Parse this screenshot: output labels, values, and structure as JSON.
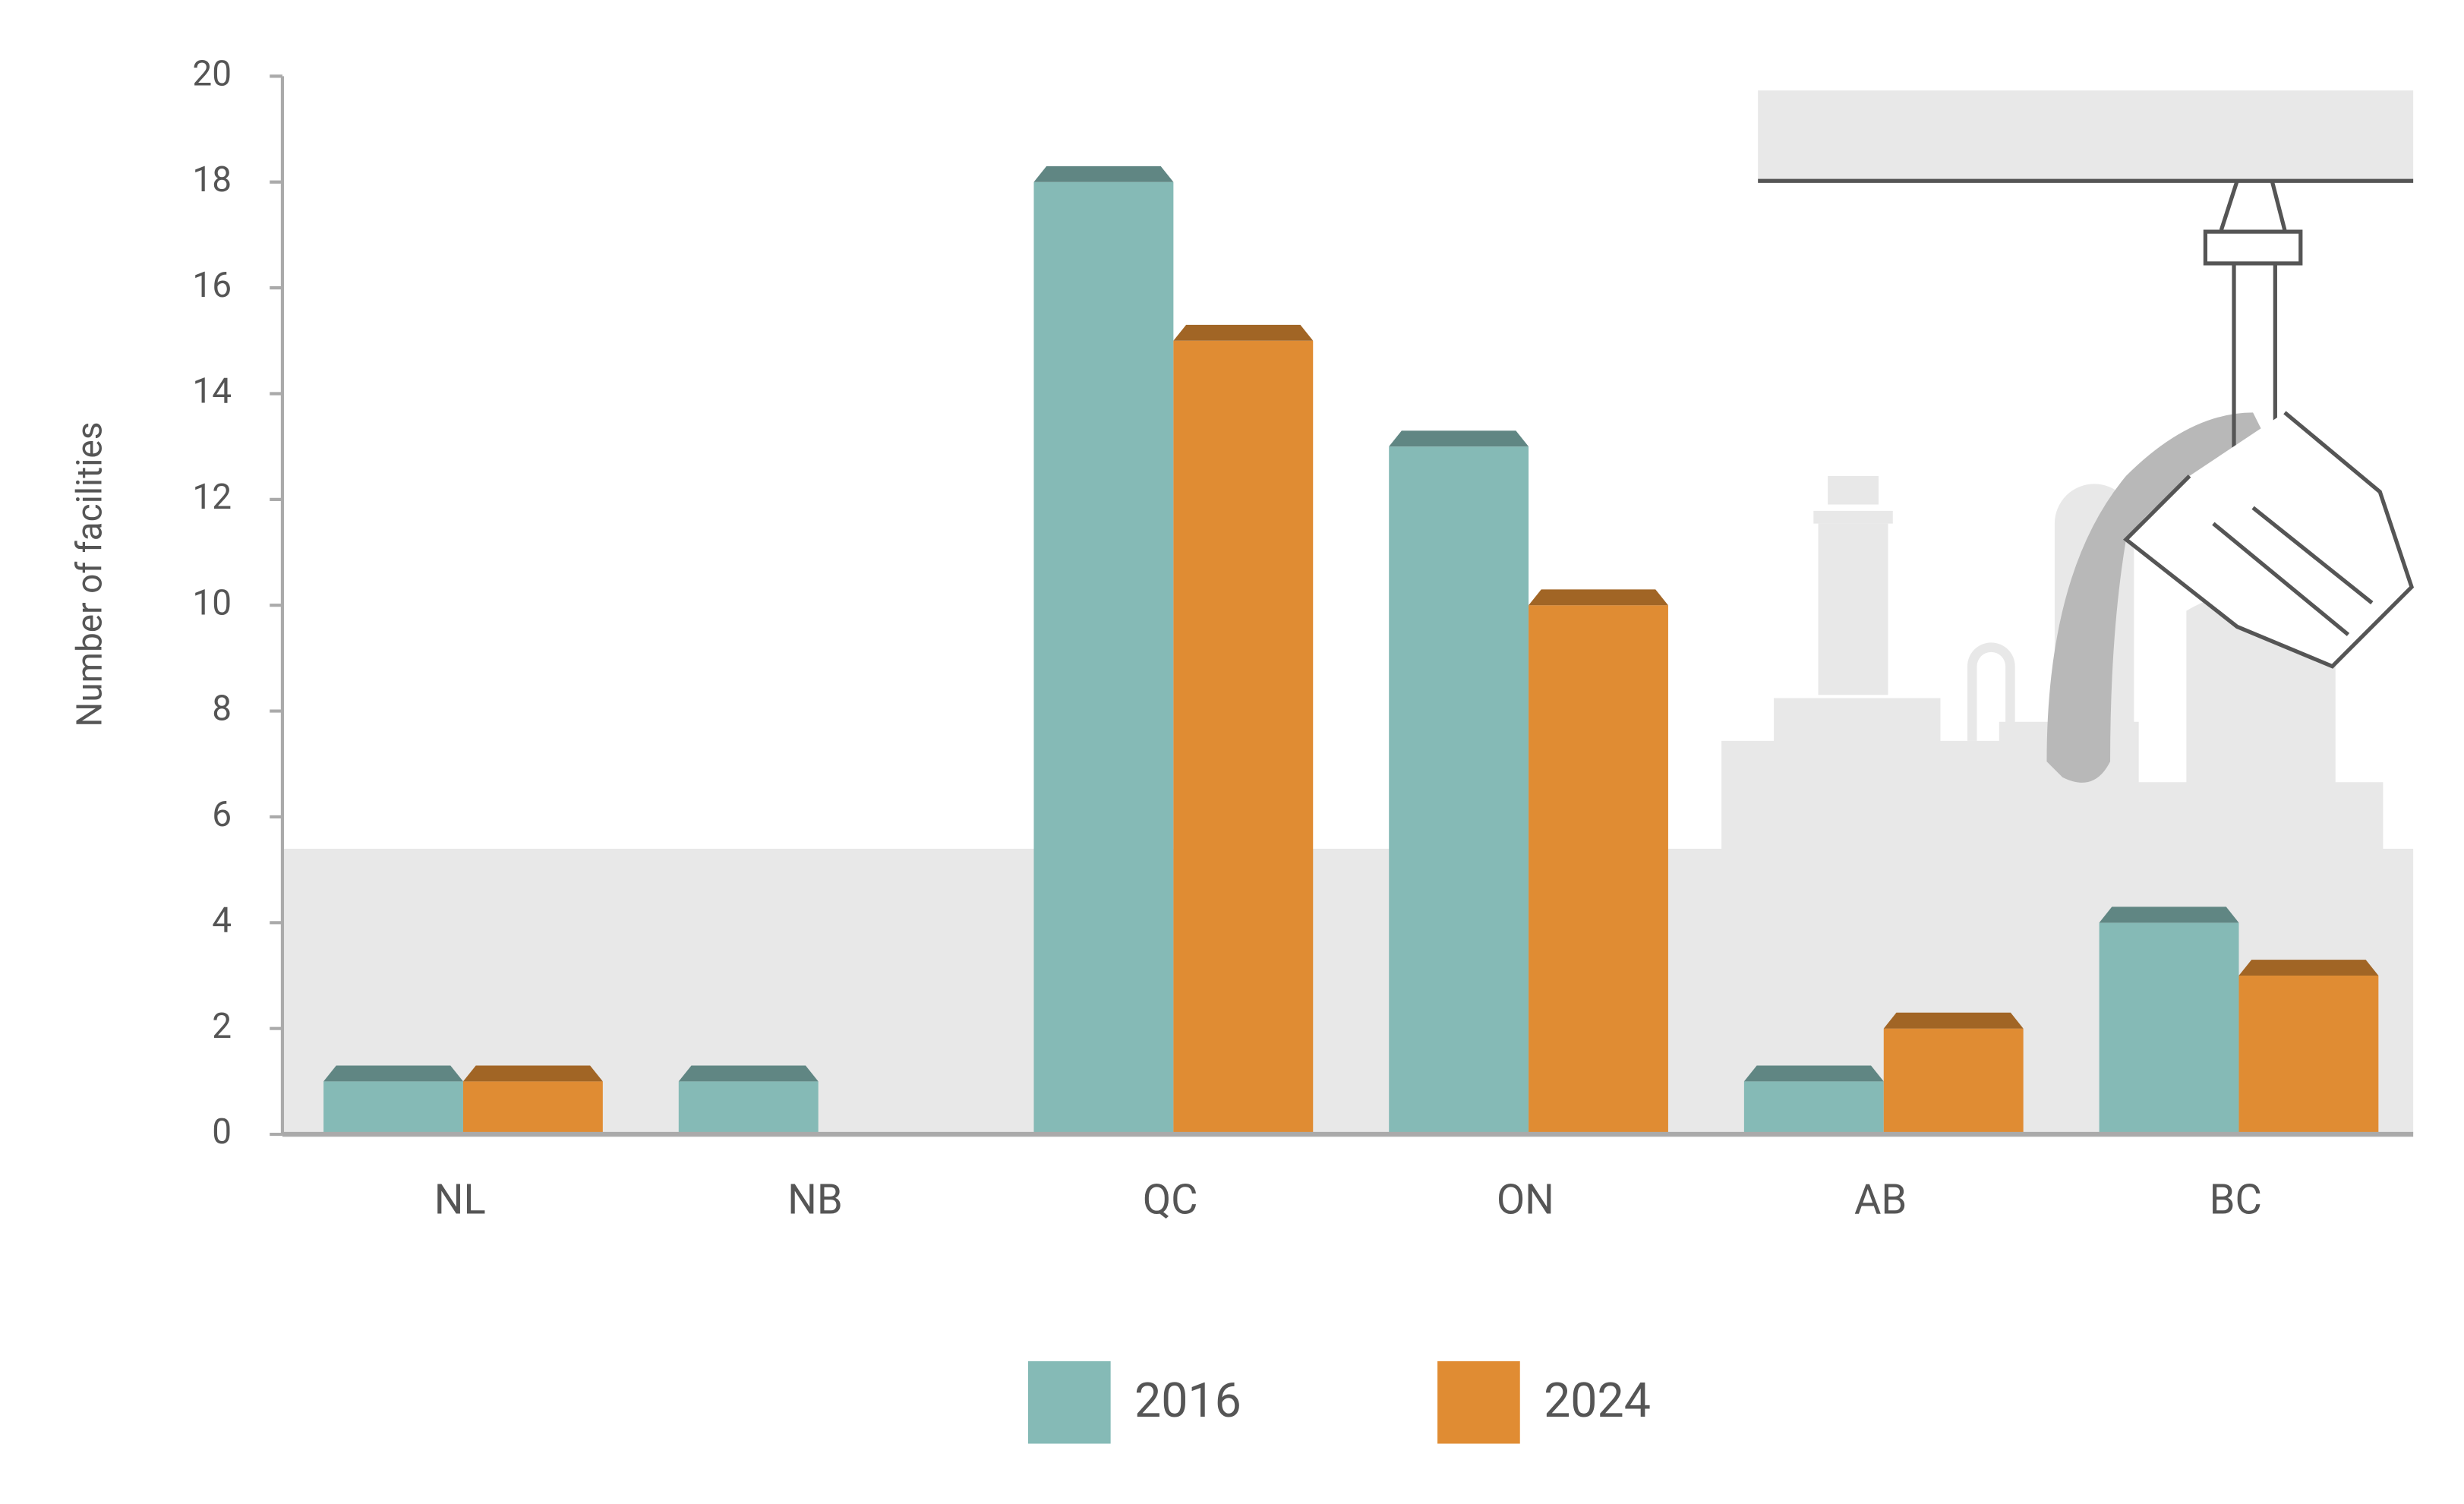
{
  "chart_data": {
    "type": "bar",
    "y_axis_label": "Number of facilities",
    "categories": [
      "NL",
      "NB",
      "QC",
      "ON",
      "AB",
      "BC"
    ],
    "series": [
      {
        "name": "2016",
        "color": "#85bab6",
        "values": [
          1,
          1,
          18,
          13,
          1,
          4
        ]
      },
      {
        "name": "2024",
        "color": "#e08c33",
        "values": [
          1,
          0,
          15,
          10,
          2,
          3
        ]
      }
    ],
    "ylim": [
      0,
      20
    ],
    "yticks": [
      0,
      2,
      4,
      6,
      8,
      10,
      12,
      14,
      16,
      18,
      20
    ],
    "grid": false,
    "legend": "bottom"
  }
}
